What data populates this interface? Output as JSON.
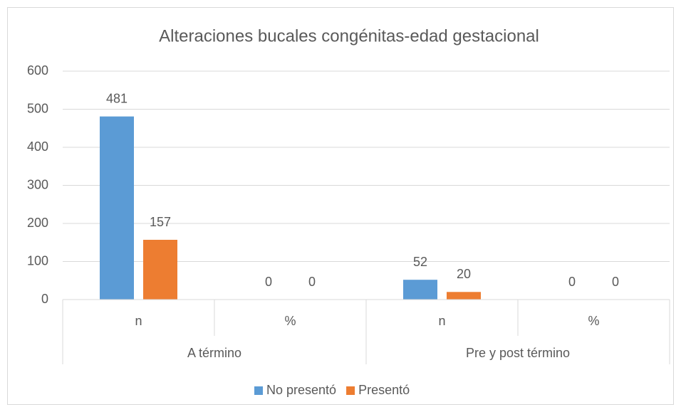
{
  "chart_data": {
    "type": "bar",
    "title": "Alteraciones bucales congénitas-edad gestacional",
    "categories": [
      "n",
      "%",
      "n",
      "%"
    ],
    "groups": [
      "A término",
      "Pre y post término"
    ],
    "series": [
      {
        "name": "No presentó",
        "color": "#5b9bd5",
        "values": [
          481,
          0,
          52,
          0
        ]
      },
      {
        "name": "Presentó",
        "color": "#ed7d31",
        "values": [
          157,
          0,
          20,
          0
        ]
      }
    ],
    "ylim": [
      0,
      600
    ],
    "yticks": [
      0,
      100,
      200,
      300,
      400,
      500,
      600
    ],
    "grid": true,
    "legend": "bottom"
  }
}
